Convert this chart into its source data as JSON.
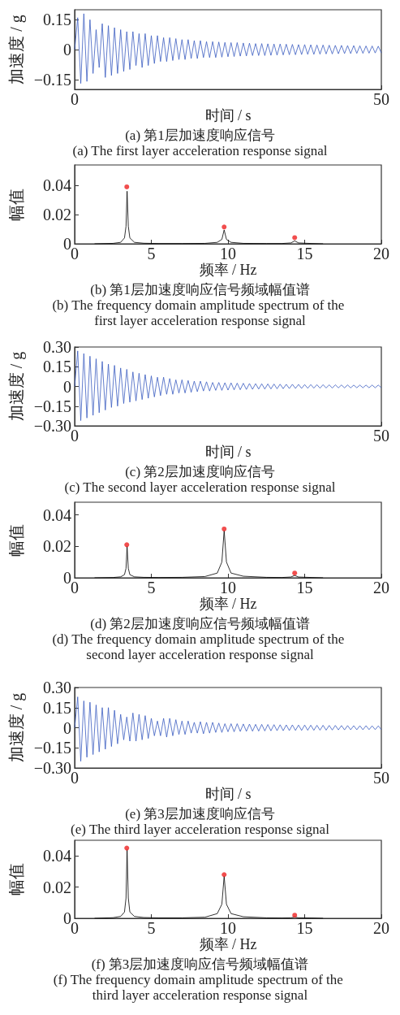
{
  "chart_data": [
    {
      "type": "line",
      "title": "(a) 第1层加速度响应信号",
      "subtitle": "(a) The first layer acceleration response signal",
      "xlabel": "时间 / s",
      "ylabel": "加速度 / g",
      "x": [
        0,
        0.5,
        1,
        1.5,
        2,
        2.5,
        3,
        3.5,
        4,
        4.5,
        5,
        5.5,
        6,
        6.5,
        7,
        7.5,
        8,
        8.5,
        9,
        9.5,
        10,
        10.5,
        11,
        11.5,
        12,
        12.5,
        13,
        13.5,
        14,
        14.5,
        15,
        15.5,
        16,
        16.5,
        17,
        17.5,
        18,
        18.5,
        19,
        19.5,
        20,
        20.5,
        21,
        21.5,
        22,
        22.5,
        23,
        23.5,
        24,
        24.5,
        25,
        25.5,
        26,
        26.5,
        27,
        27.5,
        28,
        28.5,
        29,
        29.5,
        30,
        30.5,
        31,
        31.5,
        32,
        32.5,
        33,
        33.5,
        34,
        34.5,
        35,
        35.5,
        36,
        36.5,
        37,
        37.5,
        38,
        38.5,
        39,
        39.5,
        40,
        40.5,
        41,
        41.5,
        42,
        42.5,
        43,
        43.5,
        44,
        44.5,
        45,
        45.5,
        46,
        46.5,
        47,
        47.5,
        48,
        48.5,
        49,
        49.5,
        50
      ],
      "series": [
        {
          "color": "#3a5cc0",
          "values": [
            0,
            0.16,
            -0.17,
            0.18,
            -0.16,
            0.15,
            -0.12,
            0.1,
            -0.09,
            0.13,
            -0.14,
            0.12,
            -0.13,
            0.11,
            -0.12,
            0.1,
            -0.11,
            0.09,
            -0.1,
            0.09,
            -0.08,
            0.08,
            -0.09,
            0.08,
            -0.08,
            0.07,
            -0.07,
            0.07,
            -0.06,
            0.06,
            -0.06,
            0.06,
            -0.055,
            0.055,
            -0.05,
            0.05,
            -0.05,
            0.05,
            -0.045,
            0.045,
            -0.045,
            0.045,
            -0.04,
            0.04,
            -0.04,
            0.04,
            -0.04,
            0.038,
            -0.038,
            0.036,
            -0.036,
            0.035,
            -0.035,
            0.035,
            -0.033,
            0.033,
            -0.032,
            0.032,
            -0.03,
            0.03,
            -0.03,
            0.03,
            -0.03,
            0.029,
            -0.029,
            0.028,
            -0.028,
            0.028,
            -0.027,
            0.027,
            -0.026,
            0.026,
            -0.026,
            0.025,
            -0.025,
            0.025,
            -0.024,
            0.024,
            -0.024,
            0.023,
            -0.023,
            0.023,
            -0.022,
            0.022,
            -0.022,
            0.021,
            -0.021,
            0.021,
            -0.02,
            0.02,
            -0.02,
            0.02,
            -0.019,
            0.019,
            -0.019,
            0.018,
            -0.018,
            0.018,
            -0.017,
            0.017,
            -0.017
          ]
        }
      ],
      "xlim": [
        0,
        50
      ],
      "xticks": [
        0,
        50
      ],
      "ylim": [
        -0.2,
        0.2
      ],
      "yticks": [
        {
          "value": -0.15,
          "label": "−0.15"
        },
        0,
        0.15
      ],
      "grid": false,
      "marker": "none",
      "line_style": "solid"
    },
    {
      "type": "line",
      "title": "(b) 第1层加速度响应信号频域幅值谱",
      "subtitle": "(b) The frequency domain amplitude spectrum of the first layer acceleration response signal",
      "xlabel": "频率 / Hz",
      "ylabel": "幅值",
      "x": [
        1.3,
        2.5,
        3.0,
        3.25,
        3.35,
        3.42,
        3.5,
        3.6,
        3.9,
        4.5,
        5.5,
        7,
        8.5,
        9.3,
        9.6,
        9.75,
        9.9,
        10.2,
        11,
        12.5,
        13.5,
        14.1,
        14.35,
        14.6,
        15.5,
        16.2
      ],
      "series": [
        {
          "color": "#000000",
          "values": [
            0,
            0.0003,
            0.001,
            0.004,
            0.012,
            0.036,
            0.012,
            0.004,
            0.001,
            0.0004,
            0.0002,
            0.0002,
            0.0003,
            0.001,
            0.003,
            0.0095,
            0.003,
            0.001,
            0.0003,
            0.0002,
            0.0002,
            0.0006,
            0.002,
            0.0006,
            0.0002,
            0
          ]
        },
        {
          "type": "scatter",
          "marker": "circle",
          "color": "#ee2222",
          "x": [
            3.4,
            9.75,
            14.35
          ],
          "values": [
            0.039,
            0.0115,
            0.0042
          ]
        }
      ],
      "xlim": [
        0,
        20
      ],
      "xticks": [
        0,
        5,
        10,
        15,
        20
      ],
      "ylim": [
        0,
        0.054
      ],
      "yticks": [
        0,
        0.02,
        0.04
      ],
      "grid": false,
      "marker": "none",
      "line_style": "solid"
    },
    {
      "type": "line",
      "title": "(c) 第2层加速度响应信号",
      "subtitle": "(c) The second layer acceleration response signal",
      "xlabel": "时间 / s",
      "ylabel": "加速度 / g",
      "x": [
        0,
        0.5,
        1,
        1.5,
        2,
        2.5,
        3,
        3.5,
        4,
        4.5,
        5,
        5.5,
        6,
        6.5,
        7,
        7.5,
        8,
        8.5,
        9,
        9.5,
        10,
        10.5,
        11,
        11.5,
        12,
        12.5,
        13,
        13.5,
        14,
        14.5,
        15,
        15.5,
        16,
        16.5,
        17,
        17.5,
        18,
        18.5,
        19,
        19.5,
        20,
        20.5,
        21,
        21.5,
        22,
        22.5,
        23,
        23.5,
        24,
        24.5,
        25,
        25.5,
        26,
        26.5,
        27,
        27.5,
        28,
        28.5,
        29,
        29.5,
        30,
        30.5,
        31,
        31.5,
        32,
        32.5,
        33,
        33.5,
        34,
        34.5,
        35,
        35.5,
        36,
        36.5,
        37,
        37.5,
        38,
        38.5,
        39,
        39.5,
        40,
        40.5,
        41,
        41.5,
        42,
        42.5,
        43,
        43.5,
        44,
        44.5,
        45,
        45.5,
        46,
        46.5,
        47,
        47.5,
        48,
        48.5,
        49,
        49.5,
        50
      ],
      "series": [
        {
          "color": "#3a5cc0",
          "values": [
            0,
            0.27,
            -0.26,
            0.25,
            -0.24,
            0.23,
            -0.22,
            0.21,
            -0.2,
            0.19,
            -0.18,
            0.17,
            -0.16,
            0.16,
            -0.15,
            0.14,
            -0.13,
            0.13,
            -0.12,
            0.11,
            -0.11,
            0.1,
            -0.1,
            0.09,
            -0.09,
            0.08,
            -0.08,
            0.07,
            -0.07,
            0.07,
            -0.06,
            0.06,
            -0.06,
            0.05,
            -0.05,
            0.05,
            -0.05,
            0.045,
            -0.045,
            0.04,
            -0.04,
            0.04,
            -0.035,
            0.035,
            -0.035,
            0.03,
            -0.03,
            0.03,
            -0.03,
            0.028,
            -0.028,
            0.027,
            -0.026,
            0.025,
            -0.025,
            0.024,
            -0.023,
            0.022,
            -0.022,
            0.021,
            -0.02,
            0.02,
            -0.02,
            0.019,
            -0.019,
            0.018,
            -0.018,
            0.017,
            -0.017,
            0.016,
            -0.016,
            0.016,
            -0.015,
            0.015,
            -0.015,
            0.014,
            -0.014,
            0.014,
            -0.013,
            0.013,
            -0.013,
            0.013,
            -0.012,
            0.012,
            -0.012,
            0.012,
            -0.011,
            0.011,
            -0.011,
            0.011,
            -0.011,
            0.01,
            -0.01,
            0.01,
            -0.01,
            0.01,
            -0.01,
            0.01,
            -0.01,
            0.01,
            -0.01
          ]
        }
      ],
      "xlim": [
        0,
        50
      ],
      "xticks": [
        0,
        50
      ],
      "ylim": [
        -0.3,
        0.3
      ],
      "yticks": [
        {
          "value": -0.3,
          "label": "−0.30"
        },
        {
          "value": -0.15,
          "label": "−0.15"
        },
        0,
        0.15,
        {
          "value": 0.3,
          "label": "0.30"
        }
      ],
      "grid": false,
      "marker": "none",
      "line_style": "solid"
    },
    {
      "type": "line",
      "title": "(d) 第2层加速度响应信号频域幅值谱",
      "subtitle": "(d) The frequency domain amplitude spectrum of the second layer acceleration response signal",
      "xlabel": "频率 / Hz",
      "ylabel": "幅值",
      "x": [
        1.3,
        2.5,
        3.0,
        3.25,
        3.35,
        3.42,
        3.5,
        3.6,
        3.9,
        4.5,
        5.5,
        7,
        8.5,
        9.3,
        9.6,
        9.75,
        9.9,
        10.2,
        11,
        12.5,
        13.5,
        14.1,
        14.35,
        14.6,
        15.5,
        16.2
      ],
      "series": [
        {
          "color": "#000000",
          "values": [
            0,
            0.0002,
            0.0006,
            0.002,
            0.006,
            0.02,
            0.006,
            0.002,
            0.0006,
            0.0003,
            0.0002,
            0.0003,
            0.0008,
            0.003,
            0.01,
            0.03,
            0.01,
            0.003,
            0.001,
            0.0003,
            0.0002,
            0.0005,
            0.0015,
            0.0005,
            0.0002,
            0
          ]
        },
        {
          "type": "scatter",
          "marker": "circle",
          "color": "#ee2222",
          "x": [
            3.4,
            9.75,
            14.35
          ],
          "values": [
            0.021,
            0.031,
            0.003
          ]
        }
      ],
      "xlim": [
        0,
        20
      ],
      "xticks": [
        0,
        5,
        10,
        15,
        20
      ],
      "ylim": [
        0,
        0.048
      ],
      "yticks": [
        0,
        0.02,
        0.04
      ],
      "grid": false,
      "marker": "none",
      "line_style": "solid"
    },
    {
      "type": "line",
      "title": "(e) 第3层加速度响应信号",
      "subtitle": "(e) The third layer acceleration response signal",
      "xlabel": "时间 / s",
      "ylabel": "加速度 / g",
      "x": [
        0,
        0.5,
        1,
        1.5,
        2,
        2.5,
        3,
        3.5,
        4,
        4.5,
        5,
        5.5,
        6,
        6.5,
        7,
        7.5,
        8,
        8.5,
        9,
        9.5,
        10,
        10.5,
        11,
        11.5,
        12,
        12.5,
        13,
        13.5,
        14,
        14.5,
        15,
        15.5,
        16,
        16.5,
        17,
        17.5,
        18,
        18.5,
        19,
        19.5,
        20,
        20.5,
        21,
        21.5,
        22,
        22.5,
        23,
        23.5,
        24,
        24.5,
        25,
        25.5,
        26,
        26.5,
        27,
        27.5,
        28,
        28.5,
        29,
        29.5,
        30,
        30.5,
        31,
        31.5,
        32,
        32.5,
        33,
        33.5,
        34,
        34.5,
        35,
        35.5,
        36,
        36.5,
        37,
        37.5,
        38,
        38.5,
        39,
        39.5,
        40,
        40.5,
        41,
        41.5,
        42,
        42.5,
        43,
        43.5,
        44,
        44.5,
        45,
        45.5,
        46,
        46.5,
        47,
        47.5,
        48,
        48.5,
        49,
        49.5,
        50
      ],
      "series": [
        {
          "color": "#3a5cc0",
          "values": [
            0,
            0.23,
            -0.25,
            0.2,
            -0.22,
            0.19,
            -0.2,
            0.17,
            -0.18,
            0.15,
            -0.16,
            0.15,
            -0.14,
            0.13,
            -0.12,
            0.1,
            -0.09,
            0.08,
            -0.1,
            0.11,
            -0.1,
            0.1,
            -0.09,
            0.09,
            -0.08,
            0.07,
            -0.06,
            0.05,
            -0.06,
            0.07,
            -0.07,
            0.07,
            -0.06,
            0.06,
            -0.05,
            0.05,
            -0.05,
            0.05,
            -0.04,
            0.04,
            -0.04,
            0.045,
            -0.045,
            0.04,
            -0.04,
            0.04,
            -0.035,
            0.035,
            -0.035,
            0.03,
            -0.03,
            0.03,
            -0.03,
            0.03,
            -0.028,
            0.028,
            -0.027,
            0.027,
            -0.026,
            0.025,
            -0.025,
            0.025,
            -0.024,
            0.024,
            -0.023,
            0.023,
            -0.022,
            0.022,
            -0.022,
            0.021,
            -0.021,
            0.021,
            -0.02,
            0.02,
            -0.02,
            0.02,
            -0.019,
            0.019,
            -0.019,
            0.018,
            -0.018,
            0.018,
            -0.018,
            0.017,
            -0.017,
            0.017,
            -0.016,
            0.016,
            -0.016,
            0.016,
            -0.015,
            0.015,
            -0.015,
            0.015,
            -0.015,
            0.015,
            -0.014,
            0.014,
            -0.014,
            0.014,
            -0.014
          ]
        }
      ],
      "xlim": [
        0,
        50
      ],
      "xticks": [
        0,
        50
      ],
      "ylim": [
        -0.3,
        0.3
      ],
      "yticks": [
        {
          "value": -0.3,
          "label": "−0.30"
        },
        {
          "value": -0.15,
          "label": "−0.15"
        },
        0,
        0.15,
        {
          "value": 0.3,
          "label": "0.30"
        }
      ],
      "grid": false,
      "marker": "none",
      "line_style": "solid"
    },
    {
      "type": "line",
      "title": "(f) 第3层加速度响应信号频域幅值谱",
      "subtitle": "(f) The frequency domain amplitude spectrum of the third layer acceleration response signal",
      "xlabel": "频率 / Hz",
      "ylabel": "幅值",
      "x": [
        1.3,
        2.5,
        3.0,
        3.25,
        3.35,
        3.42,
        3.5,
        3.6,
        3.9,
        4.5,
        5.5,
        7,
        8.5,
        9.3,
        9.6,
        9.75,
        9.9,
        10.2,
        11,
        12.5,
        13.5,
        14.1,
        14.35,
        14.6,
        15.5,
        16.2
      ],
      "series": [
        {
          "color": "#000000",
          "values": [
            0,
            0.0004,
            0.0012,
            0.004,
            0.013,
            0.044,
            0.013,
            0.004,
            0.0012,
            0.0005,
            0.0003,
            0.0003,
            0.0007,
            0.003,
            0.009,
            0.027,
            0.009,
            0.003,
            0.001,
            0.0003,
            0.0002,
            0.0003,
            0.0008,
            0.0003,
            0.0002,
            0
          ]
        },
        {
          "type": "scatter",
          "marker": "circle",
          "color": "#ee2222",
          "x": [
            3.4,
            9.75,
            14.35
          ],
          "values": [
            0.045,
            0.028,
            0.002
          ]
        }
      ],
      "xlim": [
        0,
        20
      ],
      "xticks": [
        0,
        5,
        10,
        15,
        20
      ],
      "ylim": [
        0,
        0.05
      ],
      "yticks": [
        0,
        0.02,
        0.04
      ],
      "grid": false,
      "marker": "none",
      "line_style": "solid"
    }
  ]
}
